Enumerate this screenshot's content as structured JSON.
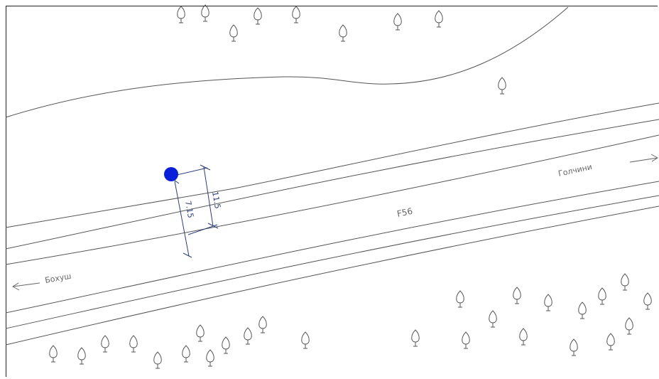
{
  "map": {
    "road_name": "F56",
    "direction_east": "Голчини",
    "direction_west": "Бохуш",
    "measure_1": "11.5",
    "measure_2": "7.15",
    "point_color": "#0a1fd9",
    "dimension_color": "#2c3e7a",
    "tree_icon": "tree-icon"
  }
}
